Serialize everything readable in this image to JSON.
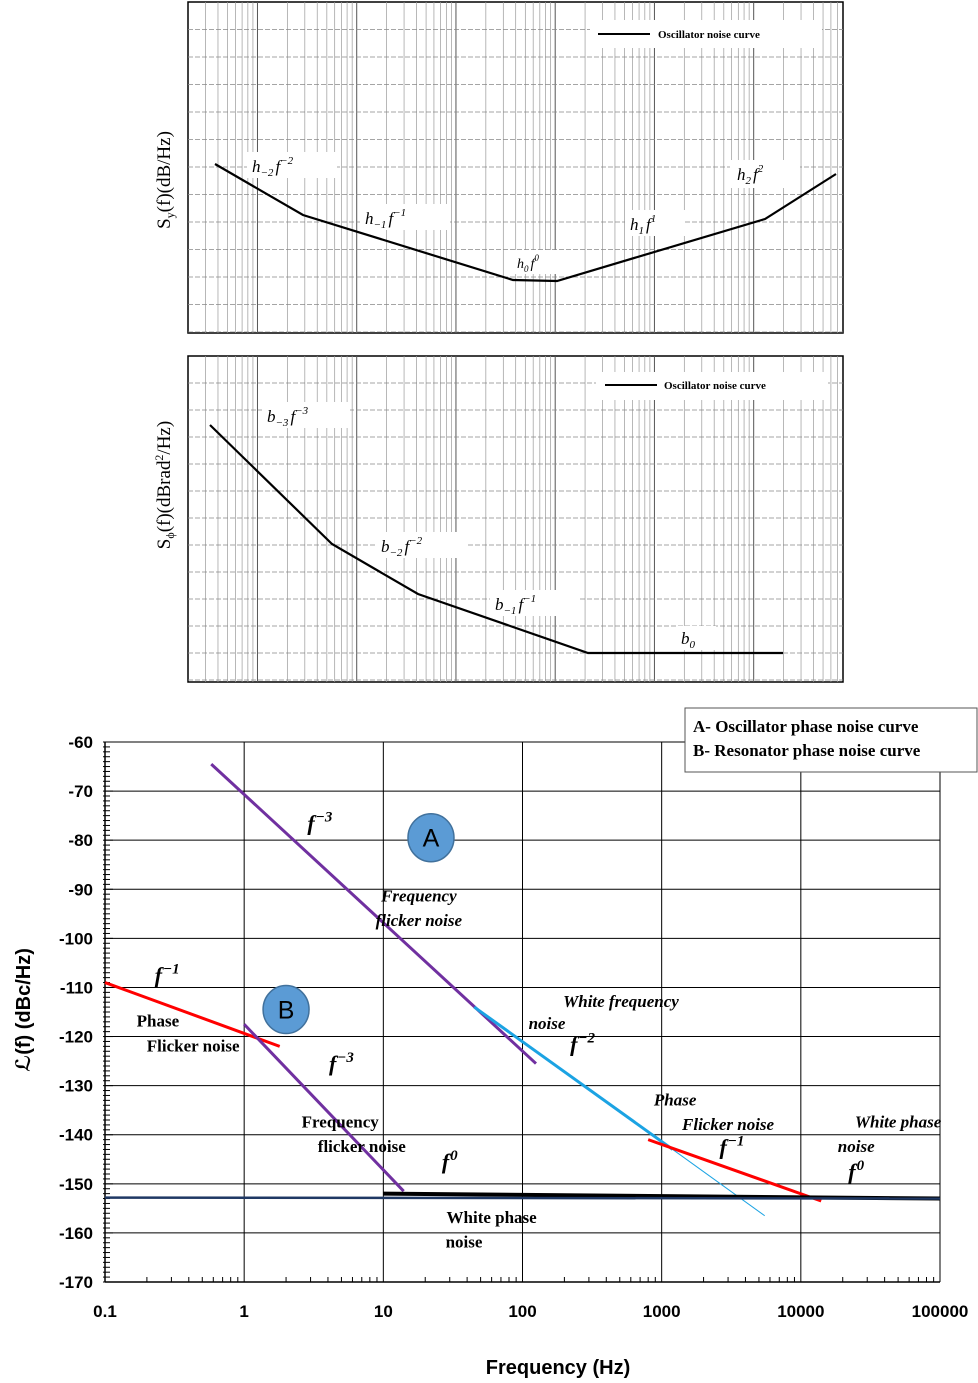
{
  "panel1": {
    "ylabel_main": "S",
    "ylabel_sub": "y",
    "ylabel_rest": "(f)(dB/Hz)",
    "legend": "Oscillator noise curve",
    "terms": [
      {
        "coef": "h",
        "sub": "−2",
        "f": "f",
        "exp": "−2"
      },
      {
        "coef": "h",
        "sub": "−1",
        "f": "f",
        "exp": "−1"
      },
      {
        "coef": "h",
        "sub": "0",
        "f": "f",
        "exp": "0"
      },
      {
        "coef": "h",
        "sub": "1",
        "f": "f",
        "exp": "1"
      },
      {
        "coef": "h",
        "sub": "2",
        "f": "f",
        "exp": "2"
      }
    ]
  },
  "panel2": {
    "ylabel_main": "S",
    "ylabel_sub": "ϕ",
    "ylabel_rest": "(f)(dBrad",
    "ylabel_sup": "2",
    "ylabel_end": "/Hz)",
    "legend": "Oscillator noise curve",
    "terms": [
      {
        "coef": "b",
        "sub": "−3",
        "f": "f",
        "exp": "−3"
      },
      {
        "coef": "b",
        "sub": "−2",
        "f": "f",
        "exp": "−2"
      },
      {
        "coef": "b",
        "sub": "−1",
        "f": "f",
        "exp": "−1"
      },
      {
        "coef": "b",
        "sub": "0",
        "f": "",
        "exp": ""
      }
    ]
  },
  "chart_data": {
    "type": "line",
    "xlabel": "Frequency (Hz)",
    "ylabel": "ℒ(f) (dBc/Hz)",
    "x_scale": "log",
    "xlim": [
      0.1,
      100000
    ],
    "ylim": [
      -170,
      -60
    ],
    "x_ticks": [
      "0.1",
      "1",
      "10",
      "100",
      "1000",
      "10000",
      "100000"
    ],
    "y_ticks": [
      "-60",
      "-70",
      "-80",
      "-90",
      "-100",
      "-110",
      "-120",
      "-130",
      "-140",
      "-150",
      "-160",
      "-170"
    ],
    "grid": true,
    "legend_lines": [
      "A- Oscillator phase noise curve",
      "B- Resonator phase noise curve"
    ],
    "legend_position": "top-right",
    "markers": [
      {
        "label": "A",
        "x": 22,
        "y": -79.5
      },
      {
        "label": "B",
        "x": 2,
        "y": -114.5
      }
    ],
    "colors": {
      "purple": "#7030a0",
      "red": "#ff0000",
      "blue": "#1ba3e3",
      "black": "#000000",
      "navy": "#1f3864",
      "marker_fill": "#5b9bd5"
    },
    "segments": [
      {
        "color": "purple",
        "width": 3,
        "x": [
          0.58,
          125
        ],
        "y": [
          -64.5,
          -125.5
        ]
      },
      {
        "color": "blue",
        "width": 3,
        "x": [
          45,
          1200
        ],
        "y": [
          -114,
          -143
        ]
      },
      {
        "color": "blue",
        "width": 1,
        "x": [
          1200,
          5500
        ],
        "y": [
          -143,
          -156.5
        ]
      },
      {
        "color": "red",
        "width": 3,
        "x": [
          0.1,
          1.8
        ],
        "y": [
          -109,
          -122
        ]
      },
      {
        "color": "purple",
        "width": 3,
        "x": [
          1,
          14
        ],
        "y": [
          -117.5,
          -151.5
        ]
      },
      {
        "color": "red",
        "width": 3,
        "x": [
          800,
          14000
        ],
        "y": [
          -141,
          -153.5
        ]
      },
      {
        "color": "black",
        "width": 4,
        "x": [
          10,
          100000
        ],
        "y": [
          -152,
          -153
        ]
      },
      {
        "color": "navy",
        "width": 2.5,
        "x": [
          0.1,
          100000
        ],
        "y": [
          -152.8,
          -153
        ]
      }
    ],
    "annotations": [
      {
        "text": "f",
        "sup": "−3",
        "x": 3.5,
        "y": -78,
        "style": "math"
      },
      {
        "text": "Frequency",
        "x": 18,
        "y": -92.5,
        "style": "italic"
      },
      {
        "text": "flicker noise",
        "x": 18,
        "y": -97.5,
        "style": "italic"
      },
      {
        "text": "f",
        "sup": "−1",
        "x": 0.28,
        "y": -109,
        "style": "math"
      },
      {
        "text": "Phase",
        "x": 0.24,
        "y": -118,
        "style": "plain"
      },
      {
        "text": "Flicker noise",
        "x": 0.43,
        "y": -123,
        "style": "plain"
      },
      {
        "text": "f",
        "sup": "−3",
        "x": 5,
        "y": -127,
        "style": "math"
      },
      {
        "text": "White frequency",
        "x": 510,
        "y": -114,
        "style": "italic"
      },
      {
        "text": "noise",
        "x": 150,
        "y": -118.5,
        "style": "italic"
      },
      {
        "text": "f",
        "sup": "−2",
        "x": 270,
        "y": -123,
        "style": "math"
      },
      {
        "text": "Frequency",
        "x": 4.9,
        "y": -138.5,
        "style": "plain"
      },
      {
        "text": "flicker noise",
        "x": 7,
        "y": -143.5,
        "style": "plain"
      },
      {
        "text": "f",
        "sup": "0",
        "x": 30,
        "y": -147,
        "style": "math"
      },
      {
        "text": "White phase",
        "x": 60,
        "y": -158,
        "style": "plain"
      },
      {
        "text": "noise",
        "x": 38,
        "y": -163,
        "style": "plain"
      },
      {
        "text": "Phase",
        "x": 1250,
        "y": -134,
        "style": "italic"
      },
      {
        "text": "Flicker noise",
        "x": 3000,
        "y": -139,
        "style": "italic"
      },
      {
        "text": "f",
        "sup": "−1",
        "x": 3200,
        "y": -144,
        "style": "math"
      },
      {
        "text": "White phase",
        "x": 50000,
        "y": -138.5,
        "style": "italic"
      },
      {
        "text": "noise",
        "x": 25000,
        "y": -143.5,
        "style": "italic"
      },
      {
        "text": "f",
        "sup": "0",
        "x": 25000,
        "y": -149,
        "style": "math"
      }
    ]
  }
}
